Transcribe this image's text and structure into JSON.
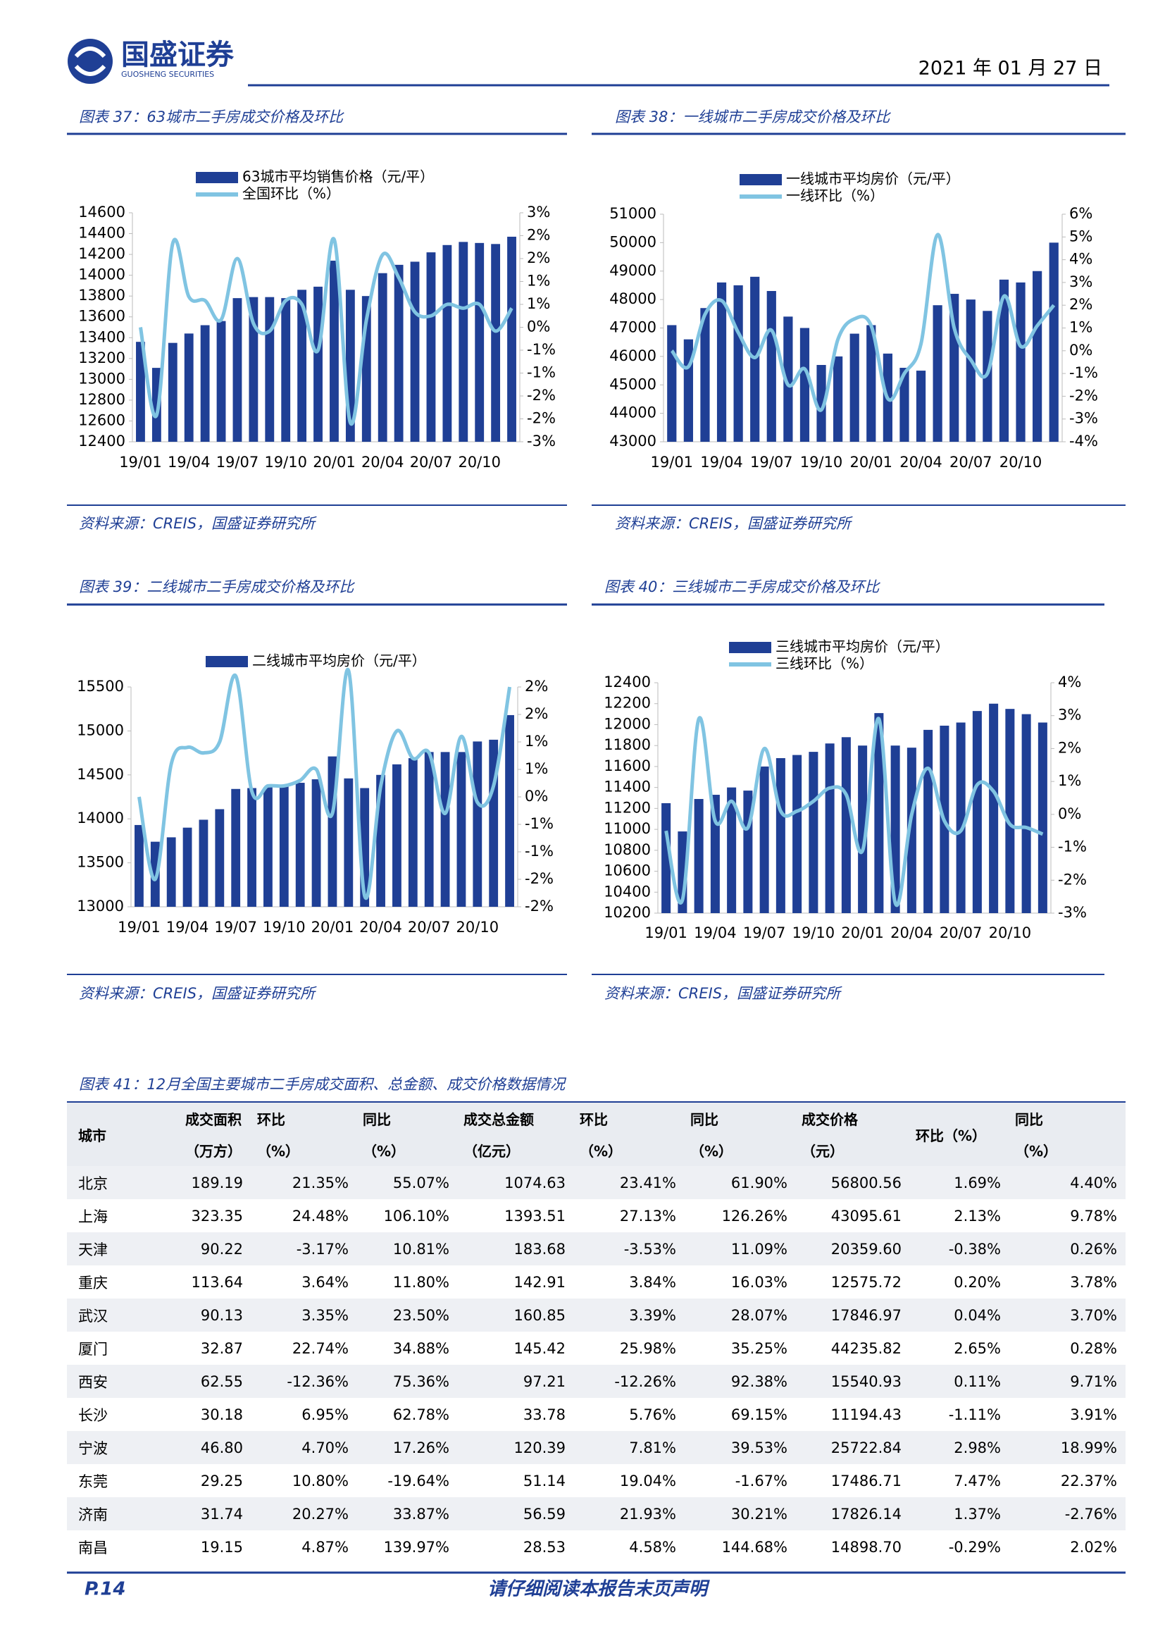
{
  "header": {
    "logo_name": "国盛证券",
    "logo_en": "GUOSHENG SECURITIES",
    "date": "2021 年 01 月 27 日"
  },
  "chart_data": [
    {
      "type": "combo",
      "title": "图表 37：63城市二手房成交价格及环比",
      "source": "资料来源：CREIS，国盛证券研究所",
      "categories": [
        "19/01",
        null,
        null,
        "19/04",
        null,
        null,
        "19/07",
        null,
        null,
        "19/10",
        null,
        null,
        "20/01",
        null,
        null,
        "20/04",
        null,
        null,
        "20/07",
        null,
        null,
        "20/10",
        null,
        null
      ],
      "series": [
        {
          "name": "63城市平均销售价格（元/平）",
          "color": "#1f3f95",
          "values": [
            13360,
            13110,
            13350,
            13440,
            13520,
            13560,
            13780,
            13790,
            13790,
            13780,
            13860,
            13890,
            14140,
            13860,
            13800,
            14020,
            14100,
            14130,
            14220,
            14290,
            14320,
            14310,
            14300,
            14370
          ]
        },
        {
          "name": "全国环比（%）",
          "color": "#80c4e2",
          "axis": "y2",
          "values": [
            0.0,
            -2.3,
            2.2,
            0.8,
            0.7,
            0.2,
            1.8,
            0.1,
            -0.1,
            0.7,
            0.6,
            -0.6,
            2.3,
            -2.5,
            0.2,
            1.9,
            1.3,
            0.4,
            0.3,
            0.6,
            0.5,
            0.6,
            -0.1,
            0.5
          ]
        }
      ],
      "ylim": [
        12400,
        14600
      ],
      "yticks": [
        12400,
        12600,
        12800,
        13000,
        13200,
        13400,
        13600,
        13800,
        14000,
        14200,
        14400,
        14600
      ],
      "y2lim": [
        -3,
        3
      ],
      "y2ticks": [
        {
          "value": -3,
          "label": "-3%"
        },
        {
          "value": -2.4,
          "label": "-2%"
        },
        {
          "value": -1.8,
          "label": "-2%"
        },
        {
          "value": -1.2,
          "label": "-1%"
        },
        {
          "value": -0.6,
          "label": "-1%"
        },
        {
          "value": 0,
          "label": "0%"
        },
        {
          "value": 0.6,
          "label": "1%"
        },
        {
          "value": 1.2,
          "label": "1%"
        },
        {
          "value": 1.8,
          "label": "2%"
        },
        {
          "value": 2.4,
          "label": "2%"
        },
        {
          "value": 3,
          "label": "3%"
        }
      ]
    },
    {
      "type": "combo",
      "title": "图表 38：一线城市二手房成交价格及环比",
      "source": "资料来源：CREIS，国盛证券研究所",
      "categories": [
        "19/01",
        null,
        null,
        "19/04",
        null,
        null,
        "19/07",
        null,
        null,
        "19/10",
        null,
        null,
        "20/01",
        null,
        null,
        "20/04",
        null,
        null,
        "20/07",
        null,
        null,
        "20/10",
        null,
        null
      ],
      "series": [
        {
          "name": "一线城市平均房价（元/平）",
          "color": "#1f3f95",
          "values": [
            47100,
            46600,
            47700,
            48600,
            48500,
            48800,
            48300,
            47400,
            47000,
            45700,
            46000,
            46800,
            47100,
            46100,
            45600,
            45500,
            47800,
            48200,
            48000,
            47600,
            48700,
            48600,
            49000,
            50000
          ]
        },
        {
          "name": "一线环比（%）",
          "color": "#80c4e2",
          "axis": "y2",
          "values": [
            0.0,
            -0.7,
            1.6,
            2.2,
            0.8,
            -0.3,
            0.9,
            -1.5,
            -0.8,
            -2.6,
            0.5,
            1.4,
            1.1,
            -2.1,
            -1.0,
            0.3,
            5.1,
            1.0,
            -0.4,
            -1.0,
            2.4,
            0.2,
            1.1,
            2.0
          ]
        }
      ],
      "ylim": [
        43000,
        51000
      ],
      "yticks": [
        43000,
        44000,
        45000,
        46000,
        47000,
        48000,
        49000,
        50000,
        51000
      ],
      "y2lim": [
        -4,
        6
      ],
      "y2ticks": [
        {
          "value": -4,
          "label": "-4%"
        },
        {
          "value": -3,
          "label": "-3%"
        },
        {
          "value": -2,
          "label": "-2%"
        },
        {
          "value": -1,
          "label": "-1%"
        },
        {
          "value": 0,
          "label": "0%"
        },
        {
          "value": 1,
          "label": "1%"
        },
        {
          "value": 2,
          "label": "2%"
        },
        {
          "value": 3,
          "label": "3%"
        },
        {
          "value": 4,
          "label": "4%"
        },
        {
          "value": 5,
          "label": "5%"
        },
        {
          "value": 6,
          "label": "6%"
        }
      ]
    },
    {
      "type": "combo",
      "title": "图表 39：二线城市二手房成交价格及环比",
      "source": "资料来源：CREIS，国盛证券研究所",
      "categories": [
        "19/01",
        null,
        null,
        "19/04",
        null,
        null,
        "19/07",
        null,
        null,
        "19/10",
        null,
        null,
        "20/01",
        null,
        null,
        "20/04",
        null,
        null,
        "20/07",
        null,
        null,
        "20/10",
        null,
        null
      ],
      "series": [
        {
          "name": "二线城市平均房价（元/平）",
          "color": "#1f3f95",
          "values": [
            13930,
            13740,
            13790,
            13900,
            13990,
            14110,
            14340,
            14350,
            14360,
            14380,
            14410,
            14450,
            14710,
            14460,
            14350,
            14500,
            14620,
            14690,
            14760,
            14760,
            14760,
            14880,
            14900,
            15180
          ]
        },
        {
          "color": "#80c4e2",
          "axis": "y2",
          "values": [
            0.0,
            -1.5,
            0.6,
            0.9,
            0.8,
            1.0,
            2.2,
            0.1,
            0.2,
            0.2,
            0.3,
            0.5,
            -0.3,
            2.3,
            -1.8,
            0.2,
            1.2,
            0.7,
            0.8,
            -0.3,
            1.1,
            -0.1,
            0.2,
            2.0
          ]
        }
      ],
      "ylim": [
        13000,
        15500
      ],
      "yticks": [
        13000,
        13500,
        14000,
        14500,
        15000,
        15500
      ],
      "y2lim": [
        -2,
        2
      ],
      "y2ticks": [
        {
          "value": -2,
          "label": "-2%"
        },
        {
          "value": -1.5,
          "label": "-2%"
        },
        {
          "value": -1,
          "label": "-1%"
        },
        {
          "value": -0.5,
          "label": "-1%"
        },
        {
          "value": 0,
          "label": "0%"
        },
        {
          "value": 0.5,
          "label": "1%"
        },
        {
          "value": 1,
          "label": "1%"
        },
        {
          "value": 1.5,
          "label": "2%"
        },
        {
          "value": 2,
          "label": "2%"
        }
      ]
    },
    {
      "type": "combo",
      "title": "图表 40：三线城市二手房成交价格及环比",
      "source": "资料来源：CREIS，国盛证券研究所",
      "categories": [
        "19/01",
        null,
        null,
        "19/04",
        null,
        null,
        "19/07",
        null,
        null,
        "19/10",
        null,
        null,
        "20/01",
        null,
        null,
        "20/04",
        null,
        null,
        "20/07",
        null,
        null,
        "20/10",
        null,
        null
      ],
      "series": [
        {
          "name": "三线城市平均房价（元/平）",
          "color": "#1f3f95",
          "values": [
            11250,
            10980,
            11290,
            11330,
            11400,
            11370,
            11600,
            11680,
            11710,
            11740,
            11820,
            11880,
            11800,
            12110,
            11800,
            11780,
            11950,
            11990,
            12020,
            12130,
            12200,
            12150,
            12100,
            12020
          ]
        },
        {
          "name": "三线环比（%）",
          "color": "#80c4e2",
          "axis": "y2",
          "values": [
            -0.5,
            -2.6,
            2.9,
            -0.2,
            0.4,
            -0.4,
            2.0,
            0.1,
            0.1,
            0.4,
            0.8,
            0.6,
            -1.1,
            2.9,
            -2.7,
            0.0,
            1.4,
            -0.2,
            -0.5,
            0.9,
            0.7,
            -0.3,
            -0.4,
            -0.6
          ]
        }
      ],
      "ylim": [
        10200,
        12400
      ],
      "yticks": [
        10200,
        10400,
        10600,
        10800,
        11000,
        11200,
        11400,
        11600,
        11800,
        12000,
        12200,
        12400
      ],
      "y2lim": [
        -3,
        4
      ],
      "y2ticks": [
        {
          "value": -3,
          "label": "-3%"
        },
        {
          "value": -2,
          "label": "-2%"
        },
        {
          "value": -1,
          "label": "-1%"
        },
        {
          "value": 0,
          "label": "0%"
        },
        {
          "value": 1,
          "label": "1%"
        },
        {
          "value": 2,
          "label": "2%"
        },
        {
          "value": 3,
          "label": "3%"
        },
        {
          "value": 4,
          "label": "4%"
        }
      ]
    }
  ],
  "table": {
    "caption": "图表 41：12月全国主要城市二手房成交面积、总金额、成交价格数据情况",
    "header": [
      [
        "城市"
      ],
      [
        "成交面积",
        "（万方）"
      ],
      [
        "环比",
        "（%）"
      ],
      [
        "同比",
        "（%）"
      ],
      [
        "成交总金额",
        "（亿元）"
      ],
      [
        "环比",
        "（%）"
      ],
      [
        "同比",
        "（%）"
      ],
      [
        "成交价格",
        "（元）"
      ],
      [
        "环比（%）"
      ],
      [
        "同比",
        "（%）"
      ]
    ],
    "rows": [
      [
        "北京",
        "189.19",
        "21.35%",
        "55.07%",
        "1074.63",
        "23.41%",
        "61.90%",
        "56800.56",
        "1.69%",
        "4.40%"
      ],
      [
        "上海",
        "323.35",
        "24.48%",
        "106.10%",
        "1393.51",
        "27.13%",
        "126.26%",
        "43095.61",
        "2.13%",
        "9.78%"
      ],
      [
        "天津",
        "90.22",
        "-3.17%",
        "10.81%",
        "183.68",
        "-3.53%",
        "11.09%",
        "20359.60",
        "-0.38%",
        "0.26%"
      ],
      [
        "重庆",
        "113.64",
        "3.64%",
        "11.80%",
        "142.91",
        "3.84%",
        "16.03%",
        "12575.72",
        "0.20%",
        "3.78%"
      ],
      [
        "武汉",
        "90.13",
        "3.35%",
        "23.50%",
        "160.85",
        "3.39%",
        "28.07%",
        "17846.97",
        "0.04%",
        "3.70%"
      ],
      [
        "厦门",
        "32.87",
        "22.74%",
        "34.88%",
        "145.42",
        "25.98%",
        "35.25%",
        "44235.82",
        "2.65%",
        "0.28%"
      ],
      [
        "西安",
        "62.55",
        "-12.36%",
        "75.36%",
        "97.21",
        "-12.26%",
        "92.38%",
        "15540.93",
        "0.11%",
        "9.71%"
      ],
      [
        "长沙",
        "30.18",
        "6.95%",
        "62.78%",
        "33.78",
        "5.76%",
        "69.15%",
        "11194.43",
        "-1.11%",
        "3.91%"
      ],
      [
        "宁波",
        "46.80",
        "4.70%",
        "17.26%",
        "120.39",
        "7.81%",
        "39.53%",
        "25722.84",
        "2.98%",
        "18.99%"
      ],
      [
        "东莞",
        "29.25",
        "10.80%",
        "-19.64%",
        "51.14",
        "19.04%",
        "-1.67%",
        "17486.71",
        "7.47%",
        "22.37%"
      ],
      [
        "济南",
        "31.74",
        "20.27%",
        "33.87%",
        "56.59",
        "21.93%",
        "30.21%",
        "17826.14",
        "1.37%",
        "-2.76%"
      ],
      [
        "南昌",
        "19.15",
        "4.87%",
        "139.97%",
        "28.53",
        "4.58%",
        "144.68%",
        "14898.70",
        "-0.29%",
        "2.02%"
      ]
    ]
  },
  "footer": {
    "page": "P.14",
    "notice": "请仔细阅读本报告末页声明"
  }
}
